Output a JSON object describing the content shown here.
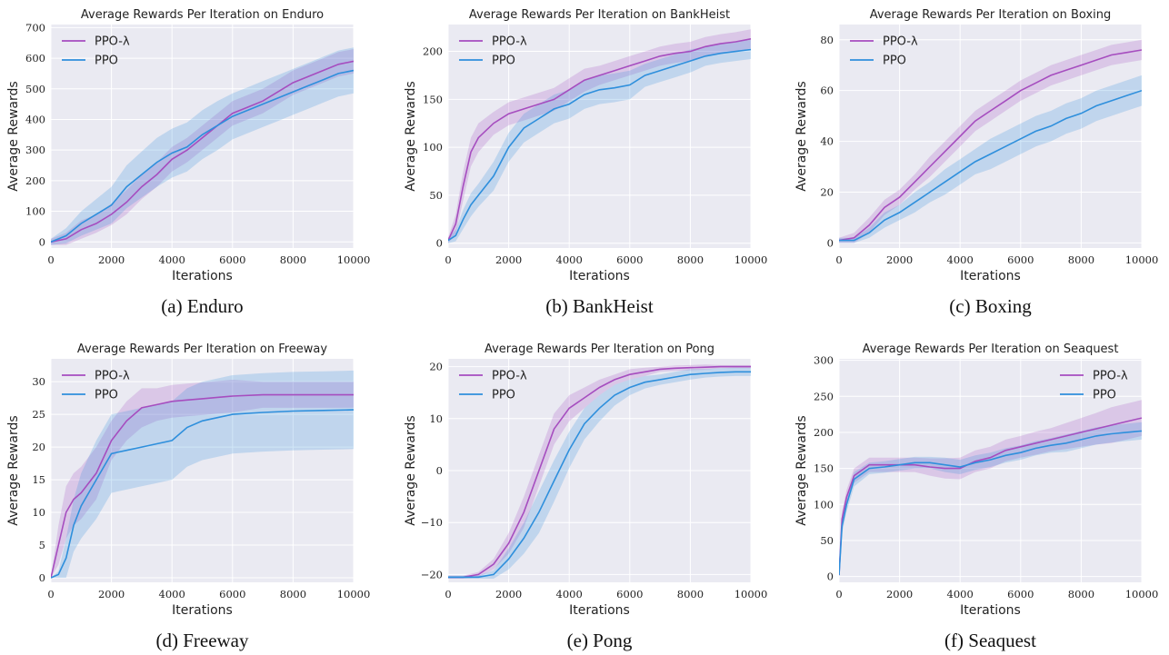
{
  "chart_data": [
    {
      "type": "line",
      "title": "Average Rewards Per Iteration on Enduro",
      "xlabel": "Iterations",
      "ylabel": "Average Rewards",
      "caption": "(a) Enduro",
      "xlim": [
        0,
        10000
      ],
      "ylim": [
        -20,
        710
      ],
      "xticks": [
        0,
        2000,
        4000,
        6000,
        8000,
        10000
      ],
      "yticks": [
        0,
        100,
        200,
        300,
        400,
        500,
        600,
        700
      ],
      "grid": true,
      "legend_position": "top-left",
      "x": [
        0,
        500,
        1000,
        1500,
        2000,
        2500,
        3000,
        3500,
        4000,
        4500,
        5000,
        5500,
        6000,
        6500,
        7000,
        7500,
        8000,
        8500,
        9000,
        9500,
        10000
      ],
      "series": [
        {
          "name": "PPO-λ",
          "color": "#a64dbf",
          "values": [
            0,
            10,
            40,
            60,
            90,
            130,
            180,
            220,
            270,
            300,
            340,
            380,
            420,
            440,
            460,
            490,
            520,
            540,
            560,
            580,
            590
          ],
          "band": [
            10,
            20,
            30,
            30,
            35,
            40,
            40,
            40,
            40,
            40,
            40,
            40,
            40,
            40,
            40,
            40,
            40,
            40,
            40,
            40,
            40
          ]
        },
        {
          "name": "PPO",
          "color": "#2e8fdc",
          "values": [
            0,
            20,
            60,
            90,
            120,
            180,
            220,
            260,
            290,
            310,
            350,
            380,
            410,
            430,
            450,
            470,
            490,
            510,
            530,
            550,
            560
          ],
          "band": [
            10,
            25,
            40,
            50,
            60,
            70,
            75,
            80,
            80,
            80,
            80,
            80,
            75,
            75,
            75,
            75,
            75,
            75,
            75,
            75,
            75
          ]
        }
      ]
    },
    {
      "type": "line",
      "title": "Average Rewards Per Iteration on BankHeist",
      "xlabel": "Iterations",
      "ylabel": "Average Rewards",
      "caption": "(b) BankHeist",
      "xlim": [
        0,
        10000
      ],
      "ylim": [
        -5,
        228
      ],
      "xticks": [
        0,
        2000,
        4000,
        6000,
        8000,
        10000
      ],
      "yticks": [
        0,
        50,
        100,
        150,
        200
      ],
      "grid": true,
      "legend_position": "top-left",
      "x": [
        0,
        250,
        500,
        750,
        1000,
        1500,
        2000,
        2500,
        3000,
        3500,
        4000,
        4500,
        5000,
        5500,
        6000,
        6500,
        7000,
        7500,
        8000,
        8500,
        9000,
        9500,
        10000
      ],
      "series": [
        {
          "name": "PPO-λ",
          "color": "#a64dbf",
          "values": [
            3,
            20,
            60,
            95,
            110,
            125,
            135,
            140,
            145,
            150,
            160,
            170,
            175,
            180,
            185,
            190,
            195,
            198,
            200,
            205,
            208,
            210,
            213
          ],
          "band": [
            3,
            10,
            15,
            15,
            15,
            12,
            12,
            12,
            12,
            12,
            12,
            12,
            10,
            10,
            10,
            10,
            10,
            10,
            10,
            10,
            10,
            10,
            10
          ]
        },
        {
          "name": "PPO",
          "color": "#2e8fdc",
          "values": [
            3,
            8,
            25,
            40,
            50,
            70,
            100,
            120,
            130,
            140,
            145,
            155,
            160,
            162,
            165,
            175,
            180,
            185,
            190,
            195,
            198,
            200,
            202
          ],
          "band": [
            3,
            6,
            10,
            12,
            12,
            15,
            15,
            15,
            15,
            15,
            15,
            15,
            15,
            15,
            15,
            12,
            12,
            12,
            12,
            10,
            10,
            10,
            10
          ]
        }
      ]
    },
    {
      "type": "line",
      "title": "Average Rewards Per Iteration on Boxing",
      "xlabel": "Iterations",
      "ylabel": "Average Rewards",
      "caption": "(c) Boxing",
      "xlim": [
        0,
        10000
      ],
      "ylim": [
        -2,
        86
      ],
      "xticks": [
        0,
        2000,
        4000,
        6000,
        8000,
        10000
      ],
      "yticks": [
        0,
        20,
        40,
        60,
        80
      ],
      "grid": true,
      "legend_position": "top-left",
      "x": [
        0,
        500,
        1000,
        1500,
        2000,
        2500,
        3000,
        3500,
        4000,
        4500,
        5000,
        5500,
        6000,
        6500,
        7000,
        7500,
        8000,
        8500,
        9000,
        9500,
        10000
      ],
      "series": [
        {
          "name": "PPO-λ",
          "color": "#a64dbf",
          "values": [
            1,
            2,
            7,
            14,
            18,
            24,
            30,
            36,
            42,
            48,
            52,
            56,
            60,
            63,
            66,
            68,
            70,
            72,
            74,
            75,
            76
          ],
          "band": [
            1,
            2,
            3,
            3,
            3,
            3,
            4,
            4,
            4,
            4,
            4,
            4,
            4,
            4,
            4,
            4,
            4,
            4,
            4,
            4,
            4
          ]
        },
        {
          "name": "PPO",
          "color": "#2e8fdc",
          "values": [
            1,
            1,
            4,
            9,
            12,
            16,
            20,
            24,
            28,
            32,
            35,
            38,
            41,
            44,
            46,
            49,
            51,
            54,
            56,
            58,
            60
          ],
          "band": [
            1,
            1,
            2,
            3,
            3,
            4,
            4,
            5,
            5,
            5,
            6,
            6,
            6,
            6,
            6,
            6,
            6,
            6,
            6,
            6,
            6
          ]
        }
      ]
    },
    {
      "type": "line",
      "title": "Average Rewards Per Iteration on Freeway",
      "xlabel": "Iterations",
      "ylabel": "Average Rewards",
      "caption": "(d) Freeway",
      "xlim": [
        0,
        10000
      ],
      "ylim": [
        -0.7,
        33.5
      ],
      "xticks": [
        0,
        2000,
        4000,
        6000,
        8000,
        10000
      ],
      "yticks": [
        0,
        5,
        10,
        15,
        20,
        25,
        30
      ],
      "grid": true,
      "legend_position": "top-left",
      "x": [
        0,
        250,
        500,
        750,
        1000,
        1500,
        2000,
        2500,
        3000,
        3500,
        4000,
        4500,
        5000,
        5500,
        6000,
        7000,
        8000,
        9000,
        10000
      ],
      "series": [
        {
          "name": "PPO-λ",
          "color": "#a64dbf",
          "values": [
            0,
            5,
            10,
            12,
            13,
            16,
            21,
            24,
            26,
            26.5,
            27,
            27.2,
            27.4,
            27.6,
            27.8,
            28,
            28,
            28,
            28
          ],
          "band": [
            0,
            3,
            4,
            4,
            4,
            4,
            3,
            3,
            3,
            2.5,
            2.5,
            2.5,
            2.5,
            2.5,
            2.5,
            2,
            2,
            2,
            2
          ]
        },
        {
          "name": "PPO",
          "color": "#2e8fdc",
          "values": [
            0,
            0.5,
            3,
            8,
            11,
            15,
            19,
            19.5,
            20,
            20.5,
            21,
            23,
            24,
            24.5,
            25,
            25.3,
            25.5,
            25.6,
            25.7
          ],
          "band": [
            0,
            0.5,
            3,
            4,
            5,
            6,
            6,
            6,
            6,
            6,
            6,
            6,
            6,
            6,
            6,
            6,
            6,
            6,
            6
          ]
        }
      ]
    },
    {
      "type": "line",
      "title": "Average Rewards Per Iteration on Pong",
      "xlabel": "Iterations",
      "ylabel": "Average Rewards",
      "caption": "(e) Pong",
      "xlim": [
        0,
        10000
      ],
      "ylim": [
        -21.5,
        21.5
      ],
      "xticks": [
        0,
        2000,
        4000,
        6000,
        8000,
        10000
      ],
      "yticks": [
        -20,
        -10,
        0,
        10,
        20
      ],
      "grid": true,
      "legend_position": "top-left",
      "x": [
        0,
        500,
        1000,
        1500,
        2000,
        2500,
        3000,
        3500,
        4000,
        4500,
        5000,
        5500,
        6000,
        6500,
        7000,
        7500,
        8000,
        8500,
        9000,
        9500,
        10000
      ],
      "series": [
        {
          "name": "PPO-λ",
          "color": "#a64dbf",
          "values": [
            -20.5,
            -20.5,
            -20,
            -18,
            -14,
            -8,
            0,
            8,
            12,
            14,
            16,
            17.5,
            18.5,
            19,
            19.5,
            19.7,
            19.8,
            19.9,
            20,
            20,
            20
          ],
          "band": [
            0.3,
            0.3,
            0.5,
            1,
            2,
            3,
            3,
            3,
            2.5,
            2,
            1.5,
            1,
            1,
            0.8,
            0.5,
            0.5,
            0.5,
            0.5,
            0.3,
            0.3,
            0.3
          ]
        },
        {
          "name": "PPO",
          "color": "#2e8fdc",
          "values": [
            -20.5,
            -20.5,
            -20.5,
            -20,
            -17,
            -13,
            -8,
            -2,
            4,
            9,
            12,
            14.5,
            16,
            17,
            17.5,
            18,
            18.5,
            18.7,
            18.9,
            19,
            19
          ],
          "band": [
            0.3,
            0.3,
            0.3,
            0.8,
            2,
            3,
            4,
            4,
            3.5,
            3,
            2.5,
            2,
            1.5,
            1.2,
            1,
            1,
            1,
            0.8,
            0.8,
            0.8,
            0.8
          ]
        }
      ]
    },
    {
      "type": "line",
      "title": "Average Rewards Per Iteration on Seaquest",
      "xlabel": "Iterations",
      "ylabel": "Average Rewards",
      "caption": "(f) Seaquest",
      "xlim": [
        0,
        10000
      ],
      "ylim": [
        -8,
        302
      ],
      "xticks": [
        0,
        2000,
        4000,
        6000,
        8000,
        10000
      ],
      "yticks": [
        0,
        50,
        100,
        150,
        200,
        250,
        300
      ],
      "grid": true,
      "legend_position": "top-right",
      "x": [
        0,
        100,
        250,
        500,
        1000,
        1500,
        2000,
        2500,
        3000,
        3500,
        4000,
        4500,
        5000,
        5500,
        6000,
        6500,
        7000,
        7500,
        8000,
        8500,
        9000,
        9500,
        10000
      ],
      "series": [
        {
          "name": "PPO-λ",
          "color": "#a64dbf",
          "values": [
            2,
            80,
            110,
            140,
            155,
            155,
            155,
            155,
            152,
            150,
            150,
            160,
            165,
            175,
            180,
            185,
            190,
            195,
            200,
            205,
            210,
            215,
            220
          ],
          "band": [
            2,
            10,
            10,
            10,
            10,
            10,
            10,
            10,
            12,
            14,
            15,
            15,
            15,
            15,
            15,
            16,
            16,
            18,
            20,
            22,
            25,
            25,
            25
          ]
        },
        {
          "name": "PPO",
          "color": "#2e8fdc",
          "values": [
            2,
            70,
            100,
            135,
            150,
            152,
            155,
            158,
            158,
            155,
            152,
            158,
            162,
            168,
            172,
            178,
            182,
            185,
            190,
            195,
            198,
            200,
            202
          ],
          "band": [
            2,
            10,
            10,
            10,
            8,
            8,
            8,
            8,
            8,
            10,
            10,
            10,
            10,
            10,
            10,
            10,
            10,
            12,
            12,
            12,
            12,
            12,
            12
          ]
        }
      ]
    }
  ]
}
